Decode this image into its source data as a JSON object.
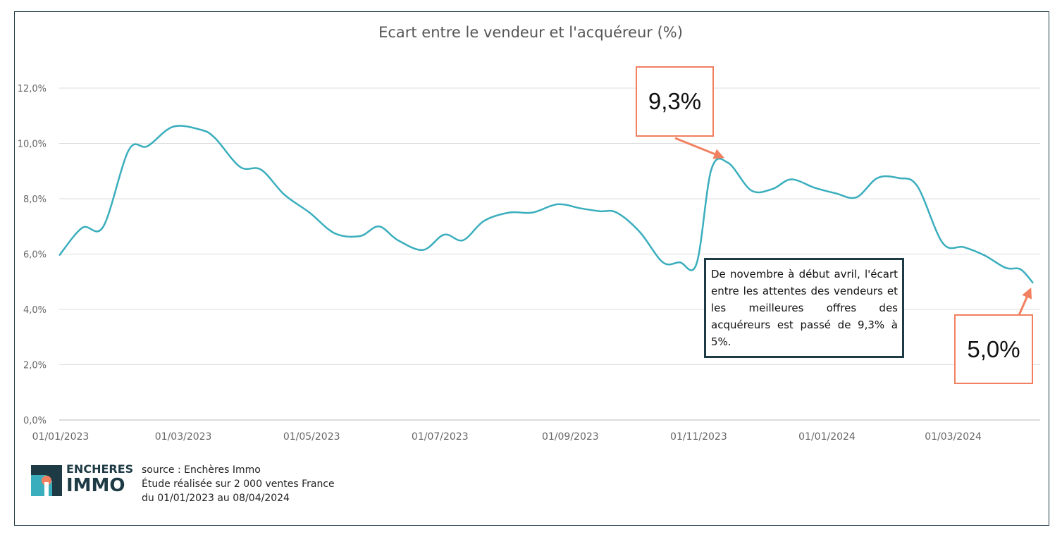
{
  "chart_data": {
    "type": "line",
    "title": "Ecart entre le vendeur et l'acquéreur (%)",
    "xlabel": "",
    "ylabel": "",
    "ylim": [
      0,
      12
    ],
    "yticks": [
      0,
      2,
      4,
      6,
      8,
      10,
      12
    ],
    "ytick_labels": [
      "0,0%",
      "2,0%",
      "4,0%",
      "6,0%",
      "8,0%",
      "10,0%",
      "12,0%"
    ],
    "xtick_labels": [
      "01/01/2023",
      "01/03/2023",
      "01/05/2023",
      "01/07/2023",
      "01/09/2023",
      "01/11/2023",
      "01/01/2024",
      "01/03/2024"
    ],
    "xtick_dates": [
      "2023-01-01",
      "2023-03-01",
      "2023-05-01",
      "2023-07-01",
      "2023-09-01",
      "2023-11-01",
      "2024-01-01",
      "2024-03-01"
    ],
    "xlim": [
      "2023-01-01",
      "2024-04-08"
    ],
    "grid": true,
    "line_color": "#3aaebd",
    "series": [
      {
        "name": "",
        "points": [
          [
            "2023-01-01",
            5.95
          ],
          [
            "2023-01-12",
            6.95
          ],
          [
            "2023-01-22",
            7.0
          ],
          [
            "2023-02-03",
            9.75
          ],
          [
            "2023-02-12",
            9.9
          ],
          [
            "2023-02-24",
            10.6
          ],
          [
            "2023-03-09",
            10.5
          ],
          [
            "2023-03-16",
            10.2
          ],
          [
            "2023-03-28",
            9.15
          ],
          [
            "2023-04-07",
            9.05
          ],
          [
            "2023-04-18",
            8.15
          ],
          [
            "2023-04-30",
            7.5
          ],
          [
            "2023-05-12",
            6.75
          ],
          [
            "2023-05-24",
            6.65
          ],
          [
            "2023-06-02",
            7.0
          ],
          [
            "2023-06-11",
            6.5
          ],
          [
            "2023-06-23",
            6.15
          ],
          [
            "2023-07-03",
            6.7
          ],
          [
            "2023-07-12",
            6.5
          ],
          [
            "2023-07-22",
            7.2
          ],
          [
            "2023-08-03",
            7.5
          ],
          [
            "2023-08-14",
            7.5
          ],
          [
            "2023-08-26",
            7.8
          ],
          [
            "2023-09-06",
            7.65
          ],
          [
            "2023-09-15",
            7.55
          ],
          [
            "2023-09-23",
            7.5
          ],
          [
            "2023-10-04",
            6.8
          ],
          [
            "2023-10-15",
            5.7
          ],
          [
            "2023-10-23",
            5.7
          ],
          [
            "2023-10-31",
            5.65
          ],
          [
            "2023-11-07",
            9.05
          ],
          [
            "2023-11-15",
            9.3
          ],
          [
            "2023-11-26",
            8.3
          ],
          [
            "2023-12-06",
            8.35
          ],
          [
            "2023-12-15",
            8.7
          ],
          [
            "2023-12-26",
            8.4
          ],
          [
            "2024-01-05",
            8.2
          ],
          [
            "2024-01-15",
            8.05
          ],
          [
            "2024-01-25",
            8.75
          ],
          [
            "2024-02-04",
            8.75
          ],
          [
            "2024-02-13",
            8.45
          ],
          [
            "2024-02-25",
            6.4
          ],
          [
            "2024-03-06",
            6.25
          ],
          [
            "2024-03-16",
            5.95
          ],
          [
            "2024-03-26",
            5.5
          ],
          [
            "2024-04-02",
            5.45
          ],
          [
            "2024-04-08",
            4.95
          ]
        ]
      }
    ],
    "annotations": [
      {
        "label": "9,3%",
        "date": "2023-11-15",
        "value": 9.3
      },
      {
        "label": "5,0%",
        "date": "2024-04-08",
        "value": 4.95
      }
    ],
    "note": "De novembre à début avril, l'écart entre les attentes des vendeurs et les meilleures offres des acquéreurs est passé de 9,3% à 5%."
  },
  "colors": {
    "line": "#3aaebd",
    "callout_border": "#f08060",
    "note_border": "#1d3a45",
    "frame": "#1d3a45",
    "grid": "#dddddd",
    "tick_text": "#666666",
    "logo_dark": "#1d3a45",
    "logo_teal": "#3aaebd",
    "logo_orange": "#f08060"
  },
  "footer": {
    "logo_line1": "ENCHERES",
    "logo_line2": "IMMO",
    "source_lines": [
      "source : Enchères Immo",
      "Étude réalisée sur 2 000 ventes France",
      "du 01/01/2023 au 08/04/2024"
    ]
  }
}
